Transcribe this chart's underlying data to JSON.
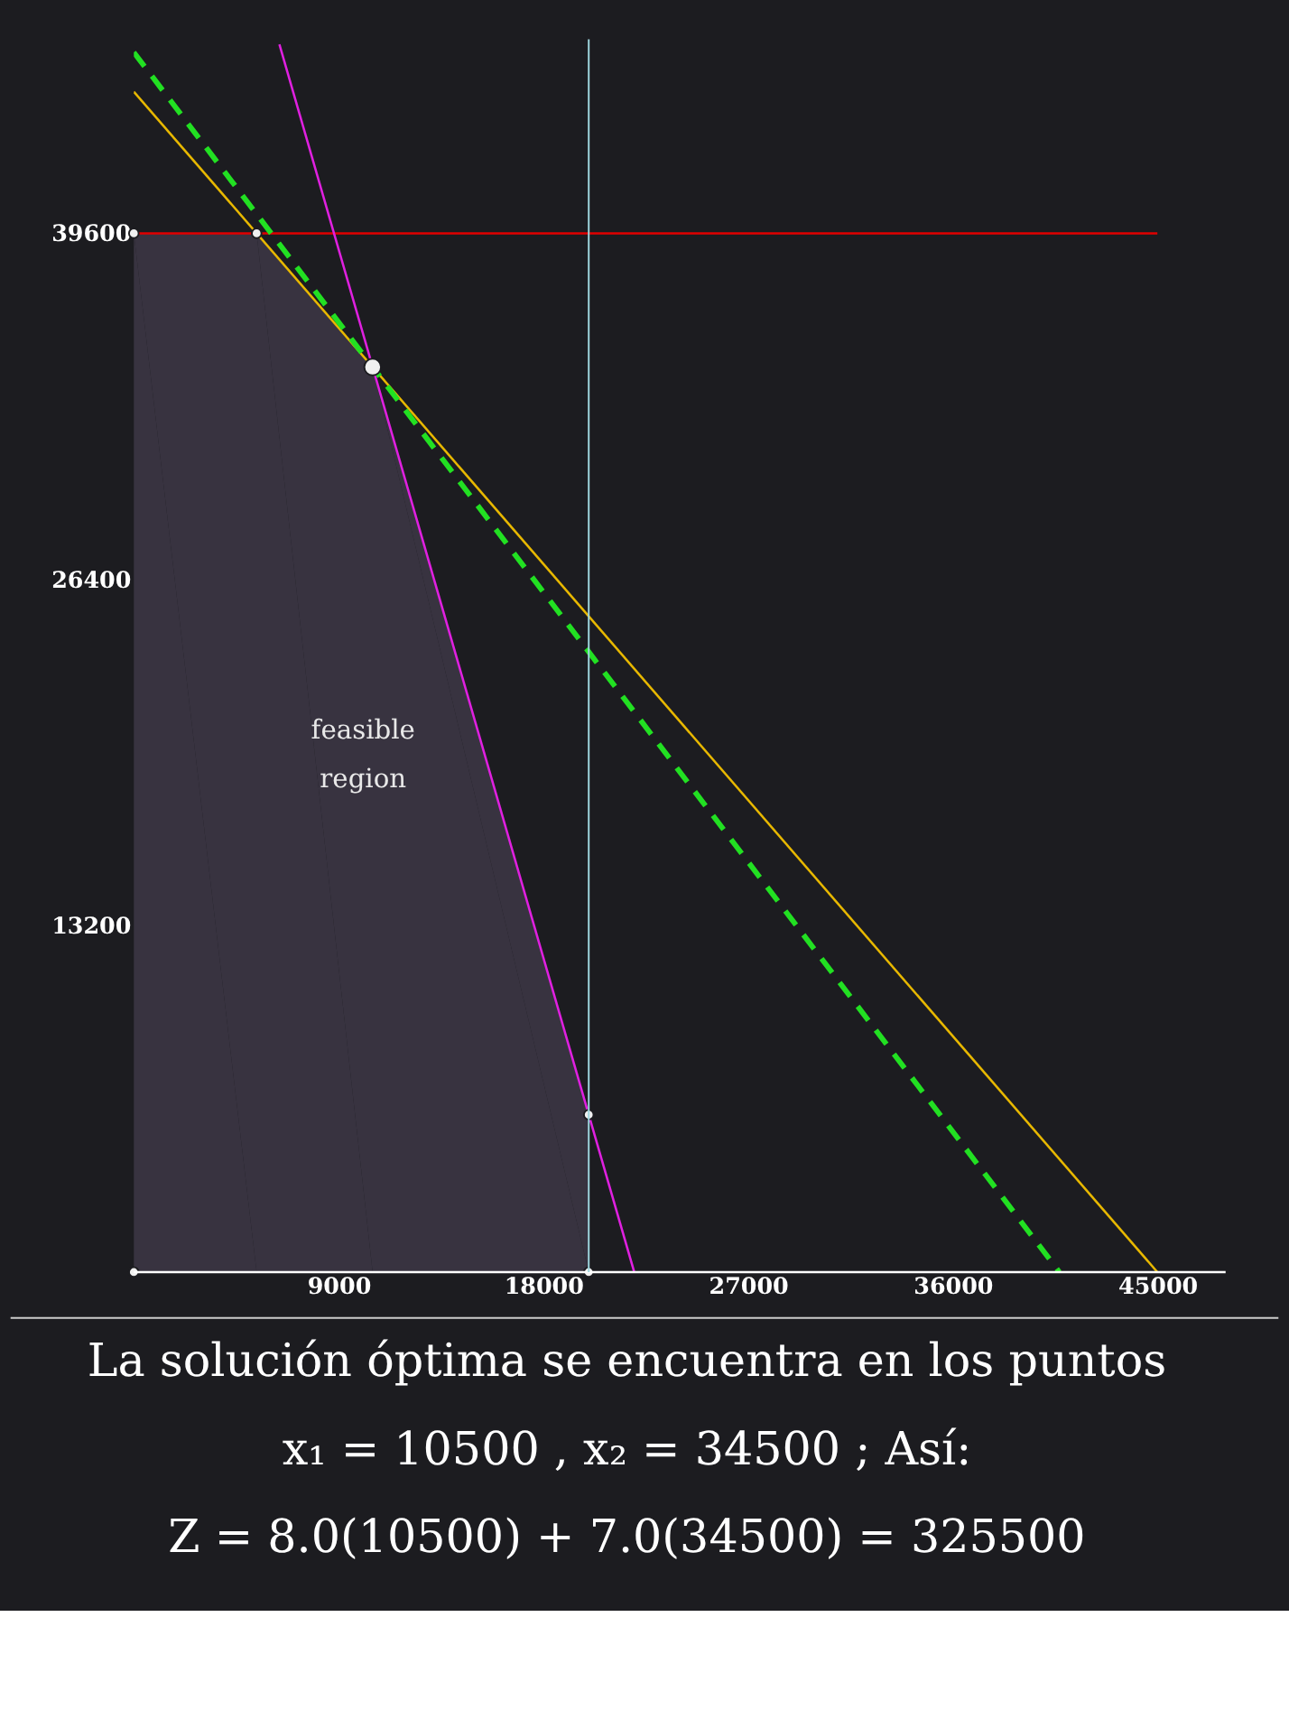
{
  "chart_data": {
    "type": "line",
    "xlim": [
      0,
      48000
    ],
    "ylim": [
      0,
      47000
    ],
    "xticks": [
      9000,
      18000,
      27000,
      36000,
      45000
    ],
    "yticks": [
      13200,
      26400,
      39600
    ],
    "grid": false,
    "series": [
      {
        "type": "area",
        "color": "#3a3542",
        "x": [
          0,
          5400,
          10500,
          20000
        ],
        "values": [
          39600,
          39600,
          34500,
          6000
        ]
      },
      {
        "color": "#e00000",
        "line_style": "solid",
        "x": [
          0,
          45000
        ],
        "values": [
          39600,
          39600
        ]
      },
      {
        "color": "#e8b800",
        "line_style": "solid",
        "x": [
          0,
          45000
        ],
        "values": [
          45000,
          0
        ]
      },
      {
        "color": "#e020e0",
        "line_style": "solid",
        "x": [
          6400,
          22000
        ],
        "values": [
          46800,
          0
        ]
      },
      {
        "color": "#22e022",
        "line_style": "dashed",
        "x": [
          0,
          40690
        ],
        "values": [
          46500,
          0
        ]
      },
      {
        "type": "scatter",
        "color": "#f0f0f0",
        "marker": "circle",
        "x": [
          0,
          0,
          5400,
          20000,
          20000
        ],
        "values": [
          0,
          39600,
          39600,
          6000,
          0
        ]
      },
      {
        "type": "scatter",
        "color": "#f0f0f0",
        "marker": "circle",
        "x": [
          10500
        ],
        "values": [
          34500
        ]
      }
    ],
    "ref_lines": [
      {
        "axis": "x",
        "value": 20000,
        "color": "#9fd8e0"
      }
    ],
    "annotations": [
      "feasible\nregion",
      "La solución óptima se encuentra en los puntos",
      "x₁ = 10500 , x₂ = 34500 ; Así:",
      "Z = 8.0(10500) + 7.0(34500) = 325500"
    ]
  }
}
